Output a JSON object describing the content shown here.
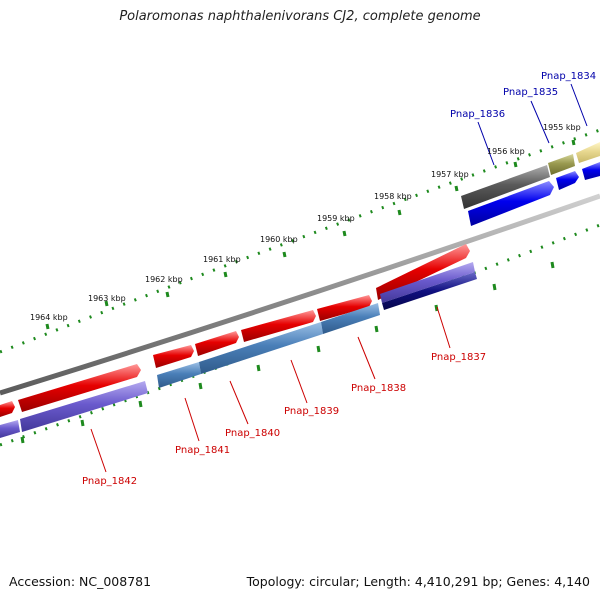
{
  "title": "Polaromonas naphthalenivorans CJ2, complete genome",
  "footer": {
    "accession": "Accession: NC_008781",
    "stats": "Topology: circular; Length: 4,410,291 bp; Genes: 4,140"
  },
  "scale_labels": [
    "1955 kbp",
    "1956 kbp",
    "1957 kbp",
    "1958 kbp",
    "1959 kbp",
    "1960 kbp",
    "1961 kbp",
    "1962 kbp",
    "1963 kbp",
    "1964 kbp"
  ],
  "gene_labels": {
    "reverse": [
      "Pnap_1837",
      "Pnap_1838",
      "Pnap_1839",
      "Pnap_1840",
      "Pnap_1841",
      "Pnap_1842"
    ],
    "forward": [
      "Pnap_1834",
      "Pnap_1835",
      "Pnap_1836"
    ]
  },
  "colors": {
    "cds_red": "#e60000",
    "cds_steelblue": "#4a7fb8",
    "cds_purple": "#6a5acd",
    "cds_navy": "#101080",
    "cds_blue": "#0000ee",
    "cds_gray": "#5a5a5a",
    "cds_olive": "#9a9a50",
    "cds_khaki": "#e8d890",
    "backbone": "#8c8c8c",
    "ticks": "#1e8a1e",
    "label_red": "#cc0000",
    "label_blue": "#0000aa"
  }
}
